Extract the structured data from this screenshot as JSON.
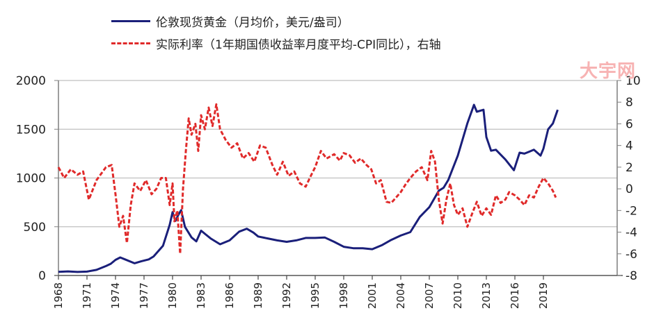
{
  "legend": {
    "gold_label": "伦敦现货黄金（月均价，美元/盎司）",
    "rate_label": "实际利率（1年期国债收益率月度平均-CPI同比），右轴"
  },
  "watermark": "大宇网",
  "colors": {
    "gold": "#1a1f7a",
    "rate": "#e02a2a",
    "grid": "#bfbfbf",
    "axis": "#7f7f7f"
  },
  "chart_data": {
    "type": "line",
    "title": "",
    "xlabel": "",
    "ylabel": "",
    "x_ticks": [
      "1968",
      "1971",
      "1974",
      "1977",
      "1980",
      "1983",
      "1986",
      "1989",
      "1992",
      "1995",
      "1998",
      "2001",
      "2004",
      "2007",
      "2010",
      "2013",
      "2016",
      "2019"
    ],
    "y_left": {
      "ticks": [
        0,
        500,
        1000,
        1500,
        2000
      ],
      "ylim": [
        0,
        2000
      ]
    },
    "y_right": {
      "ticks": [
        -8,
        -6,
        -4,
        -2,
        0,
        2,
        4,
        6,
        8,
        10
      ],
      "ylim": [
        -8,
        10
      ]
    },
    "grid": "horizontal",
    "legend_position": "top",
    "series": [
      {
        "name": "伦敦现货黄金（月均价，美元/盎司）",
        "axis": "left",
        "style": "solid",
        "x": [
          1968,
          1969,
          1970,
          1971,
          1972,
          1973,
          1973.5,
          1974,
          1974.5,
          1975,
          1976,
          1976.7,
          1977.5,
          1978,
          1979,
          1979.7,
          1980.0,
          1980.3,
          1980.6,
          1980.9,
          1981.3,
          1982,
          1982.5,
          1983,
          1983.5,
          1984,
          1985,
          1986,
          1987,
          1987.8,
          1988.5,
          1989,
          1990,
          1991,
          1992,
          1993,
          1994,
          1995,
          1996,
          1997,
          1998,
          1999,
          2000,
          2001,
          2002,
          2003,
          2004,
          2005,
          2006,
          2007,
          2008,
          2008.5,
          2009,
          2010,
          2011,
          2011.7,
          2012,
          2012.7,
          2013,
          2013.5,
          2014,
          2015,
          2015.9,
          2016.5,
          2017,
          2018,
          2018.7,
          2019,
          2019.5,
          2020.0,
          2020.5
        ],
        "values": [
          38,
          42,
          36,
          40,
          58,
          97,
          120,
          160,
          185,
          165,
          125,
          145,
          165,
          195,
          305,
          520,
          650,
          560,
          620,
          670,
          500,
          390,
          350,
          460,
          420,
          380,
          320,
          360,
          450,
          480,
          440,
          400,
          380,
          360,
          345,
          360,
          385,
          385,
          390,
          345,
          295,
          280,
          280,
          270,
          310,
          365,
          410,
          445,
          600,
          700,
          870,
          900,
          980,
          1230,
          1560,
          1750,
          1680,
          1700,
          1420,
          1280,
          1290,
          1190,
          1080,
          1260,
          1250,
          1290,
          1230,
          1300,
          1500,
          1560,
          1700
        ]
      },
      {
        "name": "实际利率（1年期国债收益率月度平均-CPI同比），右轴",
        "axis": "right",
        "style": "dashed",
        "x": [
          1968,
          1968.6,
          1969.3,
          1970,
          1970.6,
          1971.2,
          1972,
          1972.5,
          1973,
          1973.6,
          1974.0,
          1974.4,
          1974.8,
          1975.2,
          1975.6,
          1976,
          1976.6,
          1977.2,
          1977.8,
          1978.3,
          1978.8,
          1979.3,
          1979.7,
          1980.0,
          1980.2,
          1980.5,
          1980.8,
          1981.1,
          1981.4,
          1981.7,
          1982,
          1982.4,
          1982.7,
          1983.0,
          1983.4,
          1983.8,
          1984.2,
          1984.6,
          1985,
          1985.6,
          1986.2,
          1986.8,
          1987.4,
          1988,
          1988.6,
          1989.2,
          1989.8,
          1990.5,
          1991,
          1991.6,
          1992.2,
          1992.8,
          1993.4,
          1994,
          1994.6,
          1995,
          1995.6,
          1996.2,
          1997,
          1997.6,
          1998,
          1998.6,
          1999.2,
          1999.8,
          2000.4,
          2000.9,
          2001.4,
          2001.9,
          2002.5,
          2003,
          2003.5,
          2004,
          2004.5,
          2005,
          2005.6,
          2006.2,
          2006.8,
          2007.2,
          2007.6,
          2008.0,
          2008.4,
          2008.8,
          2009.2,
          2009.6,
          2010.0,
          2010.5,
          2011.0,
          2011.5,
          2012.0,
          2012.5,
          2013.0,
          2013.5,
          2014.0,
          2014.5,
          2015.0,
          2015.4,
          2016.0,
          2016.5,
          2017.0,
          2017.5,
          2018.0,
          2018.5,
          2019.0,
          2019.5,
          2020.0,
          2020.3
        ],
        "values": [
          2.0,
          1.0,
          1.8,
          1.3,
          1.6,
          -1.0,
          0.8,
          1.4,
          2.0,
          2.2,
          -0.5,
          -3.5,
          -2.5,
          -5.0,
          -1.5,
          0.5,
          -0.2,
          0.8,
          -0.5,
          0.0,
          1.0,
          1.0,
          -1.5,
          0.5,
          -3.0,
          -2.0,
          -6.0,
          0.0,
          3.5,
          6.5,
          5.0,
          6.0,
          3.5,
          6.8,
          5.5,
          7.5,
          5.8,
          7.8,
          5.5,
          4.5,
          3.8,
          4.2,
          2.8,
          3.3,
          2.5,
          4.0,
          3.8,
          2.2,
          1.3,
          2.5,
          1.2,
          1.6,
          0.5,
          0.2,
          1.3,
          2.0,
          3.5,
          2.8,
          3.2,
          2.6,
          3.3,
          3.1,
          2.4,
          2.8,
          2.2,
          1.8,
          0.5,
          0.8,
          -1.2,
          -1.3,
          -0.8,
          -0.3,
          0.4,
          1.0,
          1.6,
          2.0,
          0.8,
          3.5,
          2.5,
          -1.0,
          -3.2,
          -1.0,
          0.5,
          -1.5,
          -2.4,
          -1.8,
          -3.5,
          -2.3,
          -1.2,
          -2.5,
          -1.8,
          -2.4,
          -0.6,
          -1.3,
          -1.0,
          -0.3,
          -0.6,
          -1.0,
          -1.5,
          -0.6,
          -0.8,
          0.2,
          1.0,
          0.5,
          -0.2,
          -0.8
        ]
      }
    ]
  }
}
